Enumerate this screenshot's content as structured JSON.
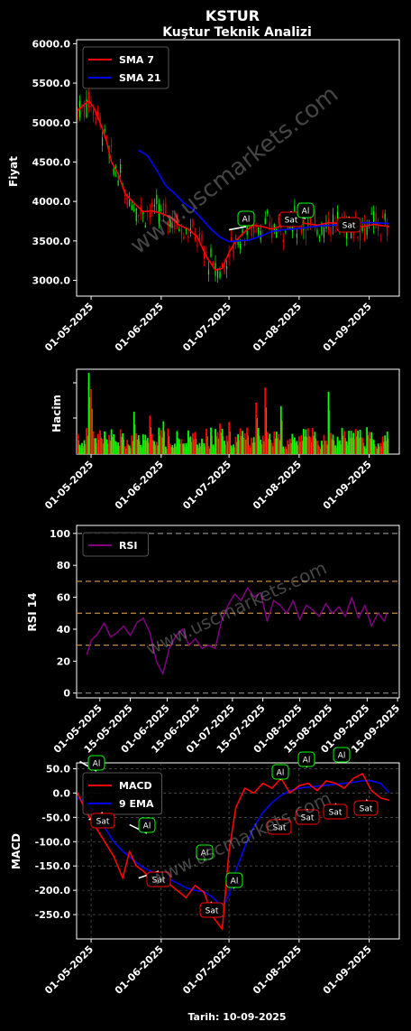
{
  "header": {
    "title": "KSTUR",
    "subtitle": "Kuştur Teknik Analizi"
  },
  "watermark": "www.uscmarkets.com",
  "footer": "Tarih: 10-09-2025",
  "colors": {
    "sma7": "#ff0000",
    "sma21": "#0000ff",
    "rsi": "#800080",
    "macd": "#ff0000",
    "ema9": "#0000ff",
    "up": "#00ff00",
    "down": "#ff0000",
    "signal_buy": "#00ff00",
    "signal_sell": "#ff0000"
  },
  "chart_data": [
    {
      "type": "line",
      "name": "price",
      "ylabel": "Fiyat",
      "ylim": [
        2800,
        6050
      ],
      "yticks": [
        3000,
        3500,
        4000,
        4500,
        5000,
        5500,
        6000
      ],
      "ytick_labels": [
        "3000.0",
        "3500.0",
        "4000.0",
        "4500.0",
        "5000.0",
        "5500.0",
        "6000.0"
      ],
      "xticks": [
        "01-05-2025",
        "01-06-2025",
        "01-07-2025",
        "01-08-2025",
        "01-09-2025"
      ],
      "legend": "top-left",
      "series": [
        {
          "name": "SMA 7",
          "x": [
            "2025-04-25",
            "2025-04-30",
            "2025-05-02",
            "2025-05-05",
            "2025-05-08",
            "2025-05-10",
            "2025-05-13",
            "2025-05-16",
            "2025-05-20",
            "2025-05-24",
            "2025-05-28",
            "2025-06-01",
            "2025-06-05",
            "2025-06-09",
            "2025-06-13",
            "2025-06-17",
            "2025-06-21",
            "2025-06-25",
            "2025-06-28",
            "2025-07-01",
            "2025-07-04",
            "2025-07-08",
            "2025-07-12",
            "2025-07-16",
            "2025-07-20",
            "2025-07-25",
            "2025-07-30",
            "2025-08-04",
            "2025-08-09",
            "2025-08-14",
            "2025-08-19",
            "2025-08-24",
            "2025-08-29",
            "2025-09-03",
            "2025-09-10"
          ],
          "values": [
            5150,
            5280,
            5200,
            5000,
            4750,
            4500,
            4350,
            4100,
            3980,
            3870,
            3880,
            3850,
            3800,
            3700,
            3650,
            3550,
            3300,
            3130,
            3150,
            3350,
            3500,
            3620,
            3700,
            3680,
            3650,
            3700,
            3750,
            3720,
            3700,
            3730,
            3720,
            3700,
            3680,
            3710,
            3680
          ]
        },
        {
          "name": "SMA 21",
          "x": [
            "2025-05-22",
            "2025-05-26",
            "2025-05-30",
            "2025-06-03",
            "2025-06-07",
            "2025-06-11",
            "2025-06-15",
            "2025-06-19",
            "2025-06-23",
            "2025-06-27",
            "2025-07-01",
            "2025-07-05",
            "2025-07-10",
            "2025-07-15",
            "2025-07-20",
            "2025-07-25",
            "2025-07-30",
            "2025-08-04",
            "2025-08-10",
            "2025-08-16",
            "2025-08-22",
            "2025-08-28",
            "2025-09-03",
            "2025-09-10"
          ],
          "values": [
            4650,
            4580,
            4400,
            4200,
            4100,
            3980,
            3900,
            3780,
            3650,
            3550,
            3490,
            3500,
            3510,
            3560,
            3620,
            3640,
            3650,
            3670,
            3690,
            3700,
            3720,
            3730,
            3730,
            3720
          ]
        }
      ],
      "annotations": [
        {
          "text": "Al",
          "x": "2025-07-01",
          "y": 3640
        },
        {
          "text": "Sat",
          "x": "2025-07-27",
          "y": 3710
        },
        {
          "text": "Al",
          "x": "2025-08-01",
          "y": 3810
        },
        {
          "text": "Sat",
          "x": "2025-08-25",
          "y": 3670
        }
      ]
    },
    {
      "type": "bar",
      "name": "volume",
      "ylabel": "Hacim",
      "xticks": [
        "01-05-2025",
        "01-06-2025",
        "01-07-2025",
        "01-08-2025",
        "01-09-2025"
      ]
    },
    {
      "type": "line",
      "name": "rsi",
      "ylabel": "RSI 14",
      "ylim": [
        -3,
        105
      ],
      "yticks": [
        0,
        20,
        40,
        60,
        80,
        100
      ],
      "ytick_labels": [
        "0",
        "20",
        "40",
        "60",
        "80",
        "100"
      ],
      "hlines": [
        0,
        30,
        50,
        70,
        100
      ],
      "xticks": [
        "01-05-2025",
        "15-05-2025",
        "01-06-2025",
        "15-06-2025",
        "01-07-2025",
        "15-07-2025",
        "01-08-2025",
        "15-08-2025",
        "01-09-2025",
        "15-09-2025"
      ],
      "legend": "top-left",
      "series": [
        {
          "name": "RSI",
          "x": [
            "2025-04-25",
            "2025-04-27",
            "2025-04-30",
            "2025-05-03",
            "2025-05-06",
            "2025-05-09",
            "2025-05-12",
            "2025-05-15",
            "2025-05-18",
            "2025-05-21",
            "2025-05-24",
            "2025-05-27",
            "2025-05-30",
            "2025-06-02",
            "2025-06-05",
            "2025-06-08",
            "2025-06-11",
            "2025-06-14",
            "2025-06-17",
            "2025-06-20",
            "2025-06-23",
            "2025-06-26",
            "2025-06-29",
            "2025-07-02",
            "2025-07-05",
            "2025-07-08",
            "2025-07-11",
            "2025-07-14",
            "2025-07-17",
            "2025-07-20",
            "2025-07-23",
            "2025-07-26",
            "2025-07-29",
            "2025-08-01",
            "2025-08-04",
            "2025-08-07",
            "2025-08-10",
            "2025-08-13",
            "2025-08-16",
            "2025-08-19",
            "2025-08-22",
            "2025-08-25",
            "2025-08-28",
            "2025-08-31",
            "2025-09-03",
            "2025-09-06",
            "2025-09-09",
            "2025-09-10"
          ],
          "values": [
            24,
            33,
            37,
            44,
            35,
            38,
            42,
            36,
            44,
            47,
            38,
            20,
            12,
            28,
            36,
            40,
            30,
            34,
            28,
            30,
            28,
            45,
            55,
            62,
            58,
            66,
            60,
            63,
            45,
            58,
            55,
            50,
            58,
            46,
            55,
            52,
            48,
            56,
            50,
            54,
            48,
            60,
            47,
            55,
            42,
            50,
            45,
            50
          ]
        }
      ]
    },
    {
      "type": "line",
      "name": "macd",
      "ylabel": "MACD",
      "ylim": [
        -300,
        62
      ],
      "yticks": [
        -250,
        -200,
        -150,
        -100,
        -50,
        0,
        50
      ],
      "ytick_labels": [
        "-250.0",
        "-200.0",
        "-150.0",
        "-100.0",
        "-50.0",
        "0.0",
        "50.0"
      ],
      "xticks": [
        "01-05-2025",
        "01-06-2025",
        "01-07-2025",
        "01-08-2025",
        "01-09-2025"
      ],
      "grid": true,
      "legend": "top-left",
      "series": [
        {
          "name": "MACD",
          "x": [
            "2025-04-25",
            "2025-04-29",
            "2025-05-03",
            "2025-05-07",
            "2025-05-11",
            "2025-05-15",
            "2025-05-18",
            "2025-05-21",
            "2025-05-24",
            "2025-05-27",
            "2025-05-31",
            "2025-06-04",
            "2025-06-08",
            "2025-06-12",
            "2025-06-16",
            "2025-06-20",
            "2025-06-24",
            "2025-06-28",
            "2025-07-01",
            "2025-07-04",
            "2025-07-08",
            "2025-07-12",
            "2025-07-16",
            "2025-07-20",
            "2025-07-24",
            "2025-07-28",
            "2025-08-01",
            "2025-08-05",
            "2025-08-09",
            "2025-08-13",
            "2025-08-17",
            "2025-08-21",
            "2025-08-25",
            "2025-08-29",
            "2025-09-02",
            "2025-09-06",
            "2025-09-10"
          ],
          "values": [
            0,
            -40,
            -70,
            -100,
            -130,
            -175,
            -120,
            -150,
            -160,
            -175,
            -170,
            -185,
            -200,
            -215,
            -190,
            -205,
            -255,
            -280,
            -120,
            -30,
            10,
            0,
            20,
            10,
            30,
            0,
            15,
            20,
            5,
            25,
            20,
            10,
            30,
            40,
            5,
            -10,
            -15
          ]
        },
        {
          "name": "9 EMA",
          "x": [
            "2025-04-25",
            "2025-04-29",
            "2025-05-03",
            "2025-05-07",
            "2025-05-11",
            "2025-05-15",
            "2025-05-19",
            "2025-05-23",
            "2025-05-27",
            "2025-05-31",
            "2025-06-04",
            "2025-06-08",
            "2025-06-12",
            "2025-06-16",
            "2025-06-20",
            "2025-06-24",
            "2025-06-28",
            "2025-07-01",
            "2025-07-04",
            "2025-07-08",
            "2025-07-12",
            "2025-07-16",
            "2025-07-20",
            "2025-07-24",
            "2025-07-28",
            "2025-08-01",
            "2025-08-05",
            "2025-08-09",
            "2025-08-13",
            "2025-08-17",
            "2025-08-21",
            "2025-08-25",
            "2025-08-29",
            "2025-09-02",
            "2025-09-06",
            "2025-09-10"
          ],
          "values": [
            -10,
            -20,
            -45,
            -70,
            -100,
            -120,
            -135,
            -150,
            -160,
            -168,
            -176,
            -185,
            -195,
            -200,
            -203,
            -215,
            -235,
            -210,
            -160,
            -110,
            -70,
            -40,
            -20,
            -5,
            5,
            10,
            12,
            14,
            16,
            18,
            20,
            22,
            25,
            25,
            20,
            0
          ]
        }
      ],
      "annotations": [
        {
          "text": "Al",
          "x": "2025-04-26",
          "y": 65
        },
        {
          "text": "Sat",
          "x": "2025-04-30",
          "y": -55
        },
        {
          "text": "Al",
          "x": "2025-05-18",
          "y": -65
        },
        {
          "text": "Sat",
          "x": "2025-05-22",
          "y": -175
        },
        {
          "text": "Al",
          "x": "2025-06-19",
          "y": -120
        },
        {
          "text": "Sat",
          "x": "2025-06-21",
          "y": -235
        },
        {
          "text": "Al",
          "x": "2025-06-30",
          "y": -175
        },
        {
          "text": "Sat",
          "x": "2025-07-25",
          "y": -65
        },
        {
          "text": "Al",
          "x": "2025-07-26",
          "y": 50
        },
        {
          "text": "Sat",
          "x": "2025-08-05",
          "y": -45
        },
        {
          "text": "Al",
          "x": "2025-08-06",
          "y": 70
        },
        {
          "text": "Sat",
          "x": "2025-08-19",
          "y": -35
        },
        {
          "text": "Al",
          "x": "2025-08-23",
          "y": 80
        },
        {
          "text": "Sat",
          "x": "2025-09-04",
          "y": -25
        }
      ]
    }
  ]
}
